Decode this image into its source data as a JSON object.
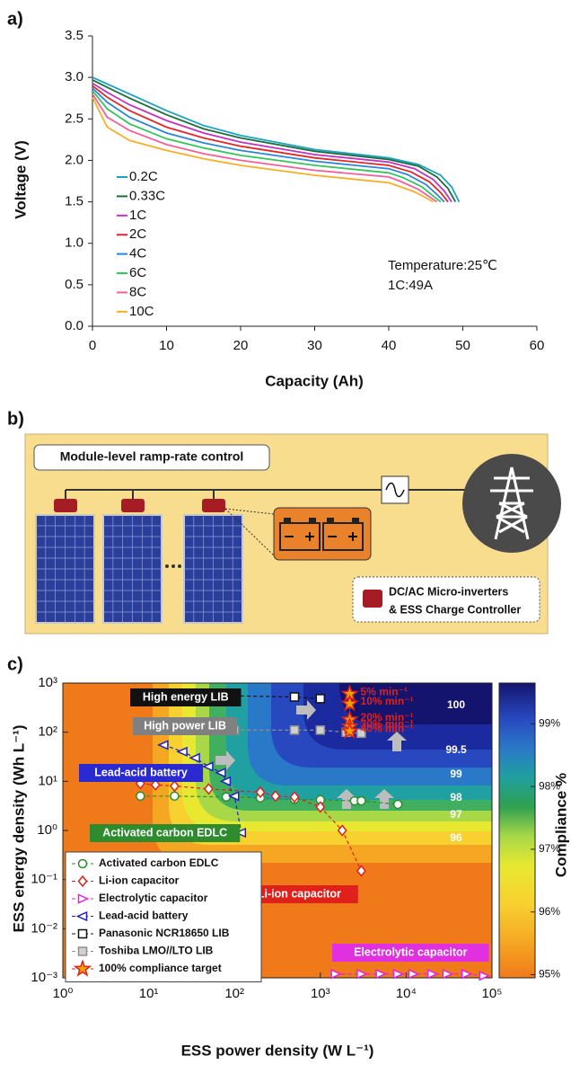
{
  "chart_data": [
    {
      "type": "line",
      "panel_label": "a)",
      "xlabel": "Capacity (Ah)",
      "ylabel": "Voltage (V)",
      "xlim": [
        0,
        60
      ],
      "ylim": [
        0,
        3.5
      ],
      "xticks": [
        0,
        10,
        20,
        30,
        40,
        50,
        60
      ],
      "yticks": [
        {
          "value": 0,
          "label": "0.0"
        },
        0.5,
        {
          "value": 1,
          "label": "1.0"
        },
        1.5,
        {
          "value": 2,
          "label": "2.0"
        },
        2.5,
        {
          "value": 3,
          "label": "3.0"
        },
        3.5
      ],
      "annotations": [
        "Temperature:25℃",
        "1C:49A"
      ],
      "series": [
        {
          "name": "0.2C",
          "color": "#1ba3c2",
          "x": [
            0,
            2,
            5,
            10,
            15,
            20,
            30,
            40,
            44,
            47,
            48.5,
            49.5
          ],
          "values": [
            3.0,
            2.92,
            2.8,
            2.6,
            2.42,
            2.3,
            2.13,
            2.03,
            1.95,
            1.82,
            1.68,
            1.5
          ]
        },
        {
          "name": "0.33C",
          "color": "#1b6e3c",
          "x": [
            0,
            2,
            5,
            10,
            15,
            20,
            30,
            40,
            44,
            46.5,
            48,
            49
          ],
          "values": [
            2.97,
            2.88,
            2.75,
            2.55,
            2.38,
            2.27,
            2.11,
            2.01,
            1.93,
            1.8,
            1.66,
            1.5
          ]
        },
        {
          "name": "1C",
          "color": "#c033c0",
          "x": [
            0,
            2,
            5,
            10,
            15,
            20,
            30,
            40,
            43.5,
            46,
            47.5,
            48.5
          ],
          "values": [
            2.93,
            2.82,
            2.67,
            2.48,
            2.33,
            2.22,
            2.07,
            1.98,
            1.9,
            1.77,
            1.63,
            1.5
          ]
        },
        {
          "name": "2C",
          "color": "#e0282a",
          "x": [
            0,
            2,
            5,
            10,
            15,
            20,
            30,
            40,
            43,
            45.5,
            47,
            48
          ],
          "values": [
            2.9,
            2.76,
            2.6,
            2.4,
            2.27,
            2.17,
            2.03,
            1.94,
            1.86,
            1.74,
            1.61,
            1.5
          ]
        },
        {
          "name": "4C",
          "color": "#2a86d8",
          "x": [
            0,
            2,
            5,
            10,
            15,
            20,
            30,
            40,
            42.5,
            45,
            46.5,
            47.5
          ],
          "values": [
            2.87,
            2.7,
            2.52,
            2.33,
            2.21,
            2.12,
            1.99,
            1.9,
            1.83,
            1.71,
            1.59,
            1.5
          ]
        },
        {
          "name": "6C",
          "color": "#34c45a",
          "x": [
            0,
            2,
            5,
            10,
            15,
            20,
            30,
            40,
            42,
            44.5,
            46,
            47
          ],
          "values": [
            2.84,
            2.62,
            2.44,
            2.26,
            2.15,
            2.06,
            1.94,
            1.85,
            1.79,
            1.68,
            1.57,
            1.5
          ]
        },
        {
          "name": "8C",
          "color": "#f0609a",
          "x": [
            0,
            2,
            5,
            10,
            15,
            20,
            30,
            40,
            41.5,
            44,
            45.5,
            46.5
          ],
          "values": [
            2.8,
            2.52,
            2.36,
            2.19,
            2.08,
            2.0,
            1.88,
            1.8,
            1.75,
            1.65,
            1.56,
            1.5
          ]
        },
        {
          "name": "10C",
          "color": "#f5b02a",
          "x": [
            0,
            2,
            5,
            10,
            15,
            20,
            30,
            40,
            41,
            43.5,
            45,
            46
          ],
          "values": [
            2.76,
            2.4,
            2.24,
            2.12,
            2.02,
            1.94,
            1.82,
            1.73,
            1.7,
            1.62,
            1.55,
            1.5
          ]
        }
      ]
    },
    {
      "type": "scatter",
      "panel_label": "c)",
      "xlabel": "ESS power density (W L⁻¹)",
      "ylabel": "ESS energy density (Wh L⁻¹)",
      "xscale": "log",
      "yscale": "log",
      "xlim": [
        1,
        100000
      ],
      "ylim": [
        0.001,
        1000
      ],
      "xticks": [
        {
          "value": 1,
          "label": "10⁰"
        },
        {
          "value": 10,
          "label": "10¹"
        },
        {
          "value": 100,
          "label": "10²"
        },
        {
          "value": 1000,
          "label": "10³"
        },
        {
          "value": 10000,
          "label": "10⁴"
        },
        {
          "value": 100000,
          "label": "10⁵"
        }
      ],
      "yticks": [
        {
          "value": 0.001,
          "label": "10⁻³"
        },
        {
          "value": 0.01,
          "label": "10⁻²"
        },
        {
          "value": 0.1,
          "label": "10⁻¹"
        },
        {
          "value": 1,
          "label": "10⁰"
        },
        {
          "value": 10,
          "label": "10¹"
        },
        {
          "value": 100,
          "label": "10²"
        },
        {
          "value": 1000,
          "label": "10³"
        }
      ],
      "region_labels": [
        "High energy LIB",
        "High power LIB",
        "Lead-acid battery",
        "Activated carbon EDLC",
        "Li-ion capacitor",
        "Electrolytic capacitor"
      ],
      "contour_labels": [
        100,
        99.5,
        99,
        98,
        97,
        96
      ],
      "colorbar": {
        "label": "Compliance %",
        "lim": [
          94.95,
          99.65
        ],
        "ticks": [
          {
            "value": 95,
            "label": "95%"
          },
          {
            "value": 96,
            "label": "96%"
          },
          {
            "value": 97,
            "label": "97%"
          },
          {
            "value": 98,
            "label": "98%"
          },
          {
            "value": 99,
            "label": "99%"
          }
        ]
      },
      "series": [
        {
          "name": "Activated carbon EDLC",
          "color": "#2e8b2e",
          "marker": "circle",
          "x": [
            8,
            20,
            80,
            200,
            500,
            1000,
            2500,
            3000,
            8000
          ],
          "values": [
            5,
            5,
            4.8,
            4.6,
            4.3,
            4.2,
            4,
            4,
            3.4
          ]
        },
        {
          "name": "Li-ion capacitor",
          "color": "#e0201a",
          "marker": "diamond",
          "x": [
            8,
            12,
            20,
            50,
            200,
            300,
            500,
            1000,
            1800,
            3000
          ],
          "values": [
            9,
            8.5,
            8,
            7,
            6,
            5,
            4.8,
            3,
            1,
            0.15
          ]
        },
        {
          "name": "Electrolytic capacitor",
          "color": "#e020e0",
          "marker": "triangle-right",
          "x": [
            1500,
            3000,
            5000,
            8000,
            12000,
            20000,
            30000,
            50000,
            80000
          ],
          "values": [
            0.0012,
            0.0012,
            0.0012,
            0.0012,
            0.0012,
            0.0012,
            0.0012,
            0.0012,
            0.0011
          ]
        },
        {
          "name": "Lead-acid battery",
          "color": "#2020c0",
          "marker": "triangle-left",
          "x": [
            15,
            25,
            35,
            50,
            70,
            80,
            100,
            120
          ],
          "values": [
            55,
            40,
            30,
            20,
            15,
            10,
            5,
            0.9
          ]
        },
        {
          "name": "Panasonic NCR18650 LIB",
          "color": "#111111",
          "marker": "square",
          "x": [
            100,
            500,
            1000
          ],
          "values": [
            550,
            520,
            480
          ]
        },
        {
          "name": "Toshiba LMO//LTO LIB",
          "color": "#909090",
          "marker": "square",
          "x": [
            100,
            500,
            1000,
            2000,
            3000
          ],
          "values": [
            110,
            110,
            110,
            100,
            95
          ]
        },
        {
          "name": "100% compliance target",
          "color": "#e0201a",
          "marker": "star",
          "x": [
            2200,
            2200,
            2200,
            2200,
            2200
          ],
          "values": [
            600,
            380,
            180,
            130,
            105
          ],
          "labels": [
            "5% min⁻¹",
            "10% min⁻¹",
            "20% min⁻¹",
            "30% min⁻¹",
            "40% min⁻¹"
          ]
        }
      ]
    }
  ],
  "diagram": {
    "panel_label": "b)",
    "title": "Module-level ramp-rate control",
    "legend_lines": [
      "DC/AC Micro-inverters",
      "& ESS Charge Controller"
    ]
  }
}
